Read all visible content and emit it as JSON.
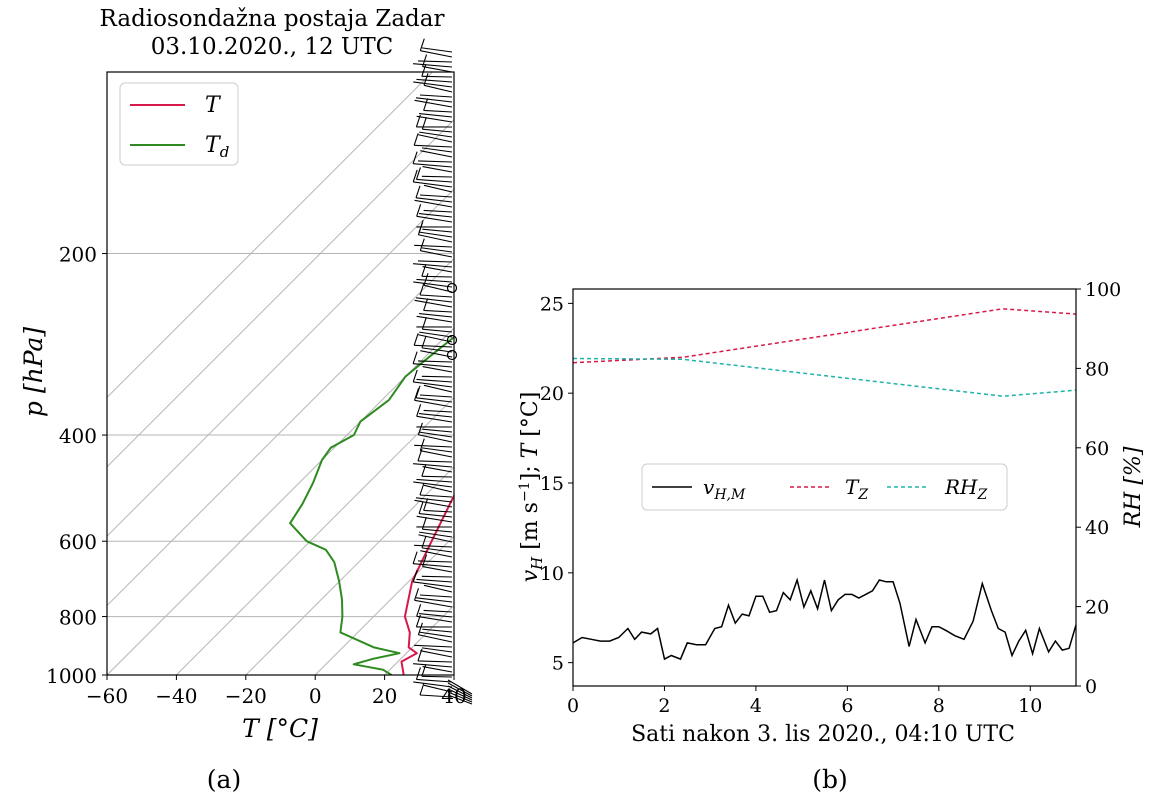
{
  "chart_data": [
    {
      "panel_label": "(a)",
      "type": "line",
      "subtype": "skew-T log-p sounding",
      "title": "Radiosondažna postaja Zadar\n03.10.2020., 12 UTC",
      "xlabel": "T [°C]",
      "ylabel": "p [hPa]",
      "xlim": [
        -60,
        40
      ],
      "ylim": [
        1000,
        100
      ],
      "y_scale": "log",
      "x_ticks": [
        -60,
        -40,
        -20,
        0,
        20,
        40
      ],
      "y_ticks": [
        1000,
        800,
        600,
        400,
        200
      ],
      "legend": {
        "placement": "top-left",
        "entries": [
          "T",
          "T_d"
        ]
      },
      "series": [
        {
          "name": "T",
          "color": "#d6194a",
          "points": [
            [
              1000,
              25.5
            ],
            [
              950,
              21
            ],
            [
              920,
              23
            ],
            [
              900,
              19
            ],
            [
              850,
              15
            ],
            [
              800,
              9
            ],
            [
              700,
              1
            ],
            [
              600,
              -5
            ],
            [
              500,
              -12
            ],
            [
              450,
              -17
            ],
            [
              400,
              -21
            ],
            [
              350,
              -26
            ],
            [
              300,
              -32
            ],
            [
              250,
              -36
            ],
            [
              230,
              -34
            ],
            [
              225,
              -28
            ],
            [
              215,
              -21
            ],
            [
              205,
              -15
            ],
            [
              190,
              -11
            ],
            [
              180,
              -9
            ],
            [
              170,
              -3
            ],
            [
              160,
              -2
            ],
            [
              150,
              6
            ],
            [
              140,
              12
            ],
            [
              125,
              23
            ],
            [
              118,
              27
            ],
            [
              112,
              30
            ],
            [
              110,
              37
            ],
            [
              108,
              40
            ]
          ]
        },
        {
          "name": "T_d",
          "color": "#2e8b1f",
          "points": [
            [
              1000,
              22
            ],
            [
              980,
              18
            ],
            [
              960,
              8
            ],
            [
              940,
              12
            ],
            [
              920,
              18
            ],
            [
              900,
              9
            ],
            [
              850,
              -5
            ],
            [
              800,
              -9
            ],
            [
              750,
              -14
            ],
            [
              700,
              -20
            ],
            [
              650,
              -27
            ],
            [
              620,
              -33
            ],
            [
              600,
              -41
            ],
            [
              560,
              -51
            ],
            [
              520,
              -53
            ],
            [
              480,
              -56
            ],
            [
              440,
              -60
            ],
            [
              420,
              -61
            ],
            [
              400,
              -58
            ],
            [
              380,
              -60
            ],
            [
              350,
              -58
            ],
            [
              320,
              -60
            ],
            [
              300,
              -59
            ],
            [
              270,
              -57
            ],
            [
              250,
              -52
            ],
            [
              240,
              -46
            ],
            [
              230,
              -45
            ],
            [
              220,
              -40
            ],
            [
              200,
              -34
            ],
            [
              180,
              -26
            ],
            [
              165,
              -20
            ],
            [
              150,
              -14
            ],
            [
              140,
              -6
            ],
            [
              130,
              -2
            ],
            [
              120,
              2
            ],
            [
              115,
              5
            ],
            [
              108,
              12
            ],
            [
              100,
              18
            ]
          ]
        }
      ],
      "grid": "isotherms"
    },
    {
      "panel_label": "(b)",
      "type": "line",
      "xlabel": "Sati nakon 3. lis 2020., 04:10 UTC",
      "ylabel_left": "v_H [m s⁻¹]; T [°C]",
      "ylabel_right": "RH [%]",
      "xlim": [
        0,
        11
      ],
      "ylim_left": [
        3.7,
        25.8
      ],
      "ylim_right": [
        0,
        100
      ],
      "x_ticks": [
        0,
        2,
        4,
        6,
        8,
        10
      ],
      "y_ticks_left": [
        5,
        10,
        15,
        20,
        25
      ],
      "y_ticks_right": [
        0,
        20,
        40,
        60,
        80,
        100
      ],
      "grid": false,
      "legend": {
        "placement": "center",
        "entries": [
          "v_{H,M}",
          "T_Z",
          "RH_Z"
        ]
      },
      "series": [
        {
          "name": "v_{H,M}",
          "axis": "left",
          "color": "#000000",
          "style": "solid",
          "x": [
            0,
            0.2,
            0.4,
            0.6,
            0.8,
            1.0,
            1.2,
            1.35,
            1.5,
            1.7,
            1.85,
            2.0,
            2.15,
            2.35,
            2.5,
            2.7,
            2.9,
            3.1,
            3.25,
            3.4,
            3.55,
            3.7,
            3.85,
            4.0,
            4.15,
            4.3,
            4.45,
            4.6,
            4.75,
            4.9,
            5.05,
            5.2,
            5.35,
            5.5,
            5.65,
            5.8,
            5.95,
            6.1,
            6.25,
            6.4,
            6.55,
            6.7,
            6.85,
            7.0,
            7.15,
            7.35,
            7.5,
            7.7,
            7.85,
            8.0,
            8.15,
            8.35,
            8.55,
            8.75,
            8.95,
            9.15,
            9.3,
            9.45,
            9.6,
            9.75,
            9.9,
            10.05,
            10.2,
            10.4,
            10.55,
            10.7,
            10.85,
            11.0
          ],
          "y": [
            6.1,
            6.4,
            6.3,
            6.2,
            6.2,
            6.4,
            6.9,
            6.3,
            6.7,
            6.6,
            6.9,
            5.2,
            5.4,
            5.2,
            6.1,
            6.0,
            6.0,
            6.9,
            7.0,
            8.2,
            7.2,
            7.7,
            7.6,
            8.7,
            8.7,
            7.8,
            7.9,
            8.9,
            8.5,
            9.6,
            8.1,
            9.0,
            8.0,
            9.6,
            7.9,
            8.5,
            8.8,
            8.8,
            8.6,
            8.8,
            9.0,
            9.6,
            9.5,
            9.5,
            8.3,
            5.9,
            7.4,
            6.1,
            7.0,
            7.0,
            6.8,
            6.5,
            6.3,
            7.3,
            9.4,
            7.9,
            6.9,
            6.7,
            5.4,
            6.2,
            6.8,
            5.5,
            6.9,
            5.6,
            6.2,
            5.7,
            5.8,
            7.1
          ]
        },
        {
          "name": "T_Z",
          "axis": "left",
          "color": "#d6194a",
          "style": "dashed",
          "x": [
            0,
            2.4,
            9.4,
            11.0
          ],
          "y": [
            21.7,
            22.0,
            24.7,
            24.4
          ]
        },
        {
          "name": "RH_Z",
          "axis": "right",
          "color": "#20b2aa",
          "style": "dashed",
          "x": [
            0,
            2.4,
            9.4,
            11.0
          ],
          "y": [
            82.5,
            82.3,
            73.0,
            74.5
          ]
        }
      ]
    }
  ]
}
